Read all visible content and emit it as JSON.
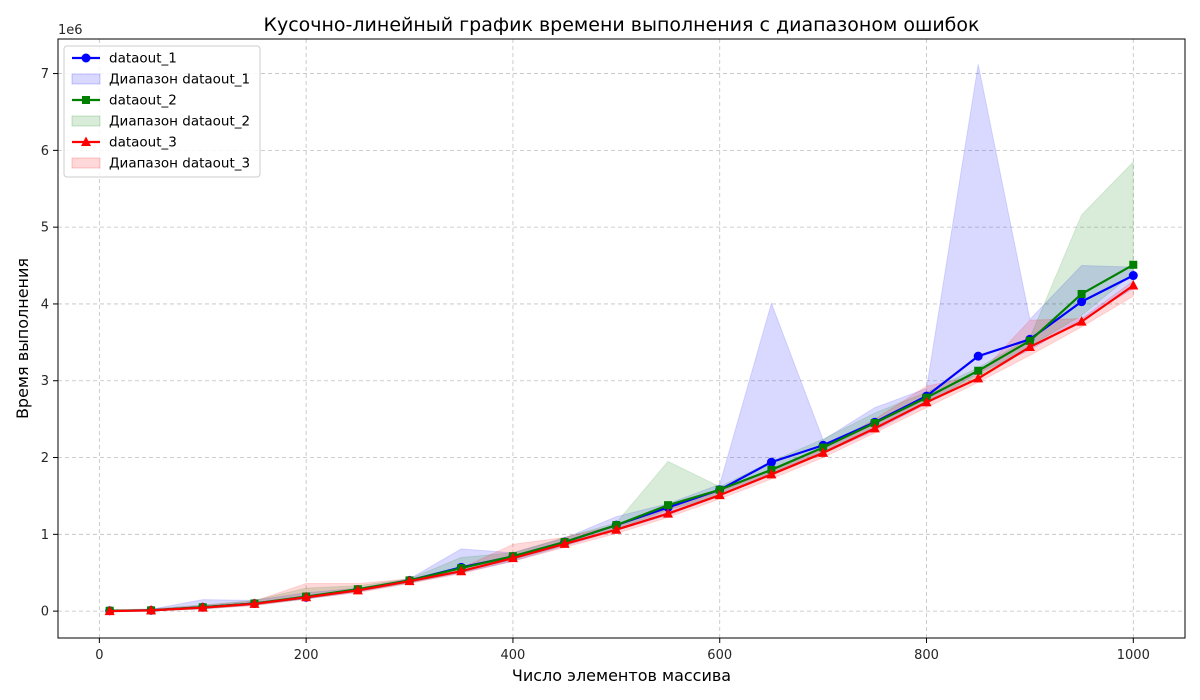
{
  "chart_data": {
    "type": "line",
    "title": "Кусочно-линейный график времени выполнения с диапазоном ошибок",
    "xlabel": "Число элементов массива",
    "ylabel": "Время выполнения",
    "y_offset_text": "1e6",
    "xlim": [
      -40,
      1050
    ],
    "ylim": [
      -350000,
      7450000
    ],
    "x_ticks": [
      0,
      200,
      400,
      600,
      800,
      1000
    ],
    "y_ticks": [
      0,
      1000000,
      2000000,
      3000000,
      4000000,
      5000000,
      6000000,
      7000000
    ],
    "y_tick_labels": [
      "0",
      "1",
      "2",
      "3",
      "4",
      "5",
      "6",
      "7"
    ],
    "grid": true,
    "legend_position": "top-left",
    "x": [
      10,
      50,
      100,
      150,
      200,
      250,
      300,
      350,
      400,
      450,
      500,
      550,
      600,
      650,
      700,
      750,
      800,
      850,
      900,
      950,
      1000
    ],
    "series": [
      {
        "name": "dataout_1",
        "band_name": "Диапазон dataout_1",
        "color": "#0000ff",
        "marker": "circle",
        "values": [
          5000,
          10000,
          50000,
          100000,
          180000,
          280000,
          400000,
          570000,
          710000,
          900000,
          1120000,
          1350000,
          1580000,
          1940000,
          2160000,
          2460000,
          2800000,
          3320000,
          3540000,
          4030000,
          4370000
        ],
        "upper": [
          15000,
          25000,
          150000,
          140000,
          240000,
          300000,
          420000,
          810000,
          760000,
          950000,
          1230000,
          1400000,
          1650000,
          4010000,
          2230000,
          2650000,
          2900000,
          7120000,
          3800000,
          4500000,
          4480000
        ],
        "lower": [
          0,
          5000,
          30000,
          80000,
          160000,
          250000,
          370000,
          500000,
          650000,
          850000,
          1050000,
          1250000,
          1500000,
          1800000,
          2050000,
          2350000,
          2700000,
          3100000,
          3400000,
          3800000,
          4200000
        ]
      },
      {
        "name": "dataout_2",
        "band_name": "Диапазон dataout_2",
        "color": "#008000",
        "marker": "square",
        "values": [
          5000,
          10000,
          50000,
          100000,
          190000,
          285000,
          400000,
          560000,
          715000,
          900000,
          1120000,
          1380000,
          1580000,
          1840000,
          2130000,
          2450000,
          2780000,
          3130000,
          3520000,
          4130000,
          4510000
        ],
        "upper": [
          15000,
          30000,
          80000,
          140000,
          300000,
          330000,
          420000,
          700000,
          760000,
          960000,
          1150000,
          1950000,
          1620000,
          1950000,
          2240000,
          2580000,
          2850000,
          3170000,
          3560000,
          5160000,
          5850000
        ],
        "lower": [
          0,
          5000,
          30000,
          80000,
          160000,
          260000,
          370000,
          510000,
          670000,
          860000,
          1060000,
          1320000,
          1500000,
          1780000,
          2070000,
          2380000,
          2720000,
          3060000,
          3450000,
          3850000,
          4400000
        ]
      },
      {
        "name": "dataout_3",
        "band_name": "Диапазон dataout_3",
        "color": "#ff0000",
        "marker": "triangle",
        "values": [
          0,
          10000,
          45000,
          95000,
          180000,
          270000,
          390000,
          520000,
          690000,
          875000,
          1060000,
          1270000,
          1510000,
          1780000,
          2060000,
          2380000,
          2720000,
          3030000,
          3440000,
          3770000,
          4240000
        ],
        "upper": [
          10000,
          25000,
          75000,
          130000,
          360000,
          360000,
          420000,
          560000,
          870000,
          960000,
          1120000,
          1330000,
          1560000,
          1830000,
          2110000,
          2500000,
          2930000,
          3070000,
          3790000,
          3810000,
          4300000
        ],
        "lower": [
          0,
          5000,
          30000,
          70000,
          160000,
          240000,
          360000,
          490000,
          650000,
          830000,
          1010000,
          1220000,
          1460000,
          1720000,
          2000000,
          2320000,
          2650000,
          2980000,
          3330000,
          3700000,
          4100000
        ]
      }
    ]
  }
}
